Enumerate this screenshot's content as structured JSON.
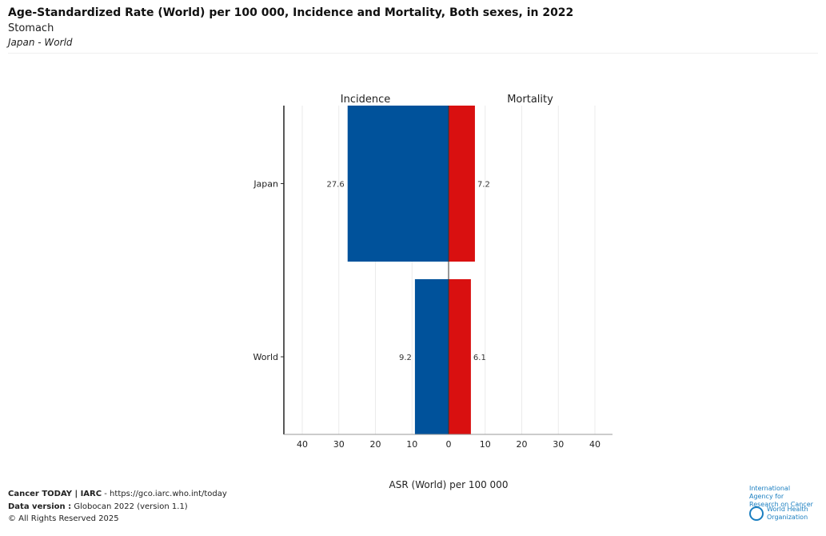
{
  "header": {
    "title": "Age-Standardized Rate (World) per 100 000, Incidence and Mortality, Both sexes, in 2022",
    "cancer": "Stomach",
    "populations": "Japan - World"
  },
  "chart_data": {
    "type": "bar",
    "orientation": "horizontal-diverging",
    "categories": [
      "Japan",
      "World"
    ],
    "panel_labels": [
      "Incidence",
      "Mortality"
    ],
    "series": [
      {
        "name": "Incidence",
        "values": [
          27.6,
          9.2
        ],
        "color": "#00529b"
      },
      {
        "name": "Mortality",
        "values": [
          7.2,
          6.1
        ],
        "color": "#d91010"
      }
    ],
    "data_labels": {
      "incidence": [
        "27.6",
        "9.2"
      ],
      "mortality": [
        "7.2",
        "6.1"
      ]
    },
    "xlabel": "ASR (World) per 100 000",
    "xticks": [
      "40",
      "30",
      "20",
      "10",
      "0",
      "10",
      "20",
      "30",
      "40"
    ],
    "xlim": [
      -45,
      45
    ],
    "grid": true
  },
  "footer": {
    "line1_bold": "Cancer TODAY | IARC",
    "line1_rest": " - https://gco.iarc.who.int/today",
    "line2_bold": "Data version :",
    "line2_rest": " Globocan 2022 (version 1.1)",
    "line3": "© All Rights Reserved 2025",
    "iarc_logo": "International Agency for Research on Cancer",
    "who_logo": "World Health Organization"
  }
}
